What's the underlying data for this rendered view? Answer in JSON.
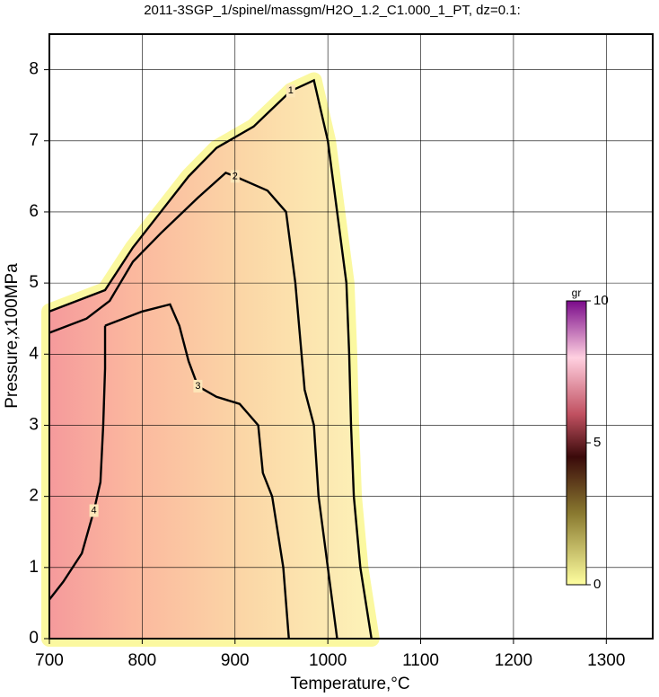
{
  "chart_data": {
    "type": "contour",
    "title": "2011-3SGP_1/spinel/massgm/H2O_1.2_C1.000_1_PT, dz=0.1:",
    "x_label": "Temperature,°C",
    "y_label": "Pressure,x100MPa",
    "xlim": [
      700,
      1350
    ],
    "xticks": [
      700,
      800,
      900,
      1000,
      1100,
      1200,
      1300
    ],
    "ylim": [
      0,
      8.5
    ],
    "yticks": [
      0,
      1,
      2,
      3,
      4,
      5,
      6,
      7,
      8
    ],
    "grid": true,
    "contours": [
      {
        "level": 1,
        "x": [
          1047,
          1035,
          1028,
          1025,
          1023,
          1020,
          1010,
          1000,
          985,
          960,
          920,
          880,
          850,
          820,
          790,
          760,
          730,
          700
        ],
        "y": [
          0,
          1,
          2,
          3,
          4,
          5,
          6,
          7,
          7.85,
          7.7,
          7.2,
          6.9,
          6.5,
          6.0,
          5.5,
          4.9,
          4.75,
          4.6
        ]
      },
      {
        "level": 2,
        "x": [
          1010,
          1000,
          990,
          985,
          975,
          965,
          955,
          935,
          900,
          890,
          860,
          820,
          790,
          765,
          740,
          700
        ],
        "y": [
          0,
          1,
          2,
          3,
          3.5,
          5,
          6,
          6.3,
          6.5,
          6.55,
          6.2,
          5.7,
          5.3,
          4.75,
          4.5,
          4.3
        ]
      },
      {
        "level": 3,
        "x": [
          958,
          952,
          940,
          930,
          925,
          905,
          880,
          860,
          850,
          840,
          830,
          800,
          770,
          760
        ],
        "y": [
          0,
          1,
          2,
          2.33,
          3.0,
          3.3,
          3.4,
          3.55,
          3.9,
          4.4,
          4.7,
          4.6,
          4.45,
          4.4
        ]
      },
      {
        "level": 4,
        "x": [
          760,
          760,
          758,
          755,
          748,
          735,
          715,
          700
        ],
        "y": [
          4.4,
          3.8,
          3.0,
          2.2,
          1.8,
          1.2,
          0.8,
          0.55
        ]
      }
    ],
    "colorbar": {
      "label": "gr",
      "lim": [
        0,
        10
      ],
      "ticks": [
        0,
        5,
        10
      ]
    }
  }
}
